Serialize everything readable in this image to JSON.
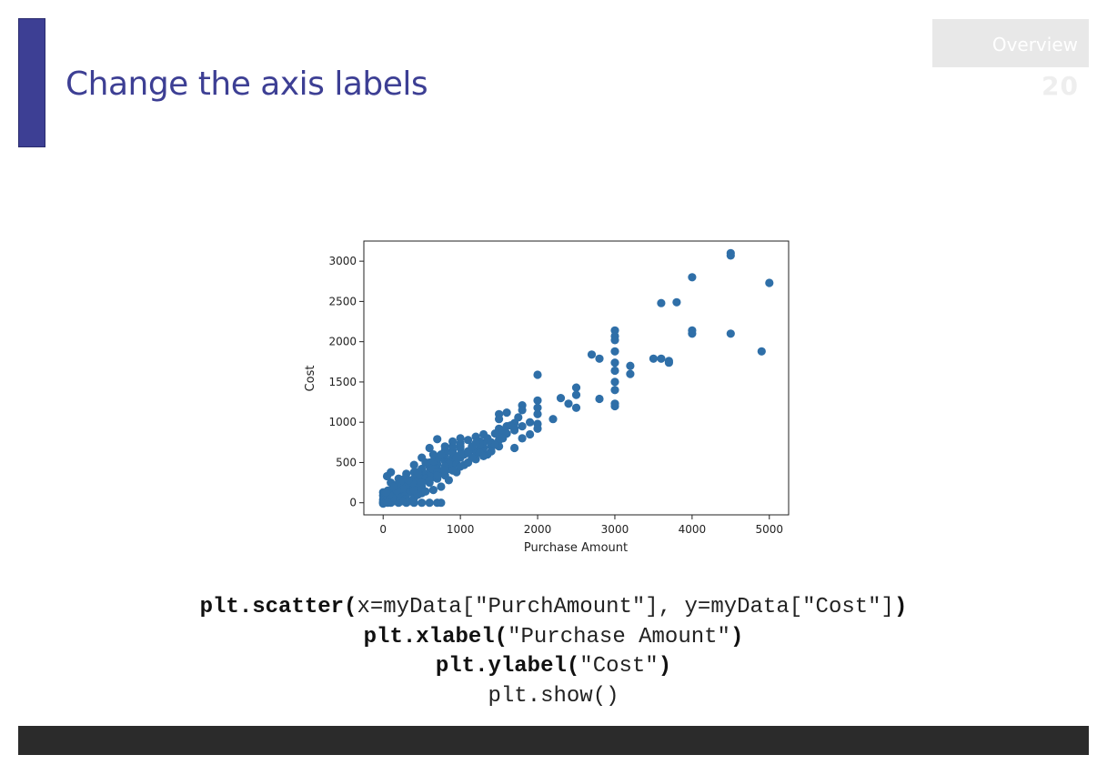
{
  "slide": {
    "title": "Change the axis labels",
    "section": "Overview",
    "page_number": "20"
  },
  "colors": {
    "accent": "#3d3f94",
    "point": "#2f6fa8",
    "footer": "#2b2b2b"
  },
  "chart_data": {
    "type": "scatter",
    "xlabel": "Purchase Amount",
    "ylabel": "Cost",
    "xlim": [
      -250,
      5250
    ],
    "ylim": [
      -150,
      3250
    ],
    "xticks": [
      0,
      1000,
      2000,
      3000,
      4000,
      5000
    ],
    "yticks": [
      0,
      500,
      1000,
      1500,
      2000,
      2500,
      3000
    ],
    "grid": false,
    "points": [
      [
        4500,
        3100
      ],
      [
        4500,
        3070
      ],
      [
        4000,
        2800
      ],
      [
        5000,
        2730
      ],
      [
        3600,
        2480
      ],
      [
        3800,
        2490
      ],
      [
        4000,
        2140
      ],
      [
        4000,
        2100
      ],
      [
        4500,
        2100
      ],
      [
        4900,
        1880
      ],
      [
        3500,
        1790
      ],
      [
        3600,
        1790
      ],
      [
        3700,
        1760
      ],
      [
        3700,
        1740
      ],
      [
        3000,
        2140
      ],
      [
        3000,
        2070
      ],
      [
        3000,
        2020
      ],
      [
        3000,
        1880
      ],
      [
        3000,
        1740
      ],
      [
        3000,
        1640
      ],
      [
        3000,
        1500
      ],
      [
        3000,
        1400
      ],
      [
        3000,
        1230
      ],
      [
        3000,
        1200
      ],
      [
        3200,
        1700
      ],
      [
        3200,
        1600
      ],
      [
        2700,
        1840
      ],
      [
        2800,
        1790
      ],
      [
        2000,
        1590
      ],
      [
        2500,
        1430
      ],
      [
        2500,
        1340
      ],
      [
        2400,
        1230
      ],
      [
        2500,
        1180
      ],
      [
        2800,
        1290
      ],
      [
        2300,
        1300
      ],
      [
        2200,
        1040
      ],
      [
        2000,
        1270
      ],
      [
        2000,
        1180
      ],
      [
        2000,
        1100
      ],
      [
        2000,
        980
      ],
      [
        2000,
        920
      ],
      [
        1800,
        1210
      ],
      [
        1800,
        1150
      ],
      [
        1750,
        1060
      ],
      [
        1700,
        990
      ],
      [
        1700,
        920
      ],
      [
        1800,
        800
      ],
      [
        1900,
        850
      ],
      [
        1600,
        1120
      ],
      [
        1500,
        1100
      ],
      [
        1500,
        1040
      ],
      [
        1600,
        950
      ],
      [
        1500,
        920
      ],
      [
        1500,
        850
      ],
      [
        1500,
        780
      ],
      [
        1400,
        700
      ],
      [
        1300,
        680
      ],
      [
        1300,
        740
      ],
      [
        1200,
        820
      ],
      [
        1200,
        640
      ],
      [
        1700,
        680
      ],
      [
        1100,
        780
      ],
      [
        1100,
        620
      ],
      [
        1000,
        740
      ],
      [
        1000,
        680
      ],
      [
        900,
        650
      ],
      [
        900,
        560
      ],
      [
        800,
        520
      ],
      [
        700,
        790
      ],
      [
        700,
        480
      ],
      [
        700,
        420
      ],
      [
        600,
        680
      ],
      [
        600,
        450
      ],
      [
        600,
        380
      ],
      [
        500,
        560
      ],
      [
        500,
        420
      ],
      [
        500,
        340
      ],
      [
        400,
        470
      ],
      [
        400,
        380
      ],
      [
        400,
        300
      ],
      [
        300,
        360
      ],
      [
        300,
        250
      ],
      [
        200,
        300
      ],
      [
        200,
        200
      ],
      [
        100,
        380
      ],
      [
        100,
        250
      ],
      [
        50,
        330
      ],
      [
        0,
        130
      ],
      [
        0,
        90
      ],
      [
        0,
        40
      ],
      [
        0,
        10
      ],
      [
        0,
        0
      ],
      [
        0,
        -10
      ],
      [
        20,
        70
      ],
      [
        20,
        40
      ],
      [
        40,
        20
      ],
      [
        60,
        150
      ],
      [
        60,
        60
      ],
      [
        80,
        20
      ],
      [
        100,
        110
      ],
      [
        100,
        50
      ],
      [
        120,
        140
      ],
      [
        150,
        60
      ],
      [
        150,
        20
      ],
      [
        150,
        180
      ],
      [
        200,
        100
      ],
      [
        200,
        40
      ],
      [
        250,
        140
      ],
      [
        250,
        60
      ],
      [
        300,
        100
      ],
      [
        350,
        200
      ],
      [
        380,
        130
      ],
      [
        400,
        220
      ],
      [
        400,
        60
      ],
      [
        450,
        240
      ],
      [
        500,
        200
      ],
      [
        500,
        120
      ],
      [
        550,
        280
      ],
      [
        600,
        250
      ],
      [
        650,
        320
      ],
      [
        700,
        300
      ],
      [
        750,
        380
      ],
      [
        800,
        340
      ],
      [
        850,
        420
      ],
      [
        900,
        460
      ],
      [
        950,
        480
      ],
      [
        1000,
        560
      ],
      [
        1050,
        600
      ],
      [
        1100,
        640
      ],
      [
        1150,
        700
      ],
      [
        1250,
        760
      ],
      [
        1350,
        800
      ],
      [
        1450,
        860
      ],
      [
        1550,
        900
      ],
      [
        1650,
        960
      ],
      [
        350,
        20
      ],
      [
        400,
        0
      ],
      [
        500,
        0
      ],
      [
        600,
        0
      ],
      [
        700,
        0
      ],
      [
        750,
        0
      ],
      [
        300,
        0
      ],
      [
        200,
        0
      ],
      [
        100,
        0
      ],
      [
        250,
        20
      ],
      [
        450,
        100
      ],
      [
        550,
        140
      ],
      [
        650,
        160
      ],
      [
        750,
        200
      ],
      [
        850,
        280
      ],
      [
        950,
        380
      ],
      [
        1050,
        470
      ],
      [
        1200,
        540
      ],
      [
        1350,
        600
      ],
      [
        1400,
        640
      ],
      [
        1500,
        700
      ],
      [
        850,
        520
      ],
      [
        750,
        560
      ],
      [
        650,
        420
      ],
      [
        560,
        360
      ],
      [
        480,
        300
      ],
      [
        420,
        270
      ],
      [
        320,
        180
      ],
      [
        280,
        140
      ],
      [
        180,
        80
      ],
      [
        130,
        90
      ],
      [
        600,
        500
      ],
      [
        650,
        520
      ],
      [
        700,
        560
      ],
      [
        800,
        600
      ],
      [
        900,
        620
      ],
      [
        1000,
        700
      ],
      [
        1250,
        720
      ],
      [
        1100,
        500
      ],
      [
        1000,
        600
      ],
      [
        950,
        560
      ],
      [
        850,
        480
      ],
      [
        800,
        450
      ],
      [
        700,
        380
      ],
      [
        600,
        330
      ],
      [
        550,
        300
      ],
      [
        450,
        180
      ],
      [
        350,
        150
      ],
      [
        300,
        220
      ],
      [
        250,
        180
      ],
      [
        180,
        150
      ],
      [
        120,
        60
      ],
      [
        80,
        100
      ],
      [
        60,
        0
      ],
      [
        40,
        130
      ],
      [
        1000,
        450
      ],
      [
        900,
        400
      ],
      [
        800,
        400
      ],
      [
        700,
        340
      ],
      [
        600,
        280
      ],
      [
        500,
        250
      ],
      [
        400,
        160
      ],
      [
        380,
        250
      ],
      [
        330,
        280
      ],
      [
        280,
        300
      ],
      [
        220,
        260
      ],
      [
        170,
        220
      ],
      [
        130,
        200
      ],
      [
        900,
        700
      ],
      [
        800,
        650
      ],
      [
        750,
        600
      ],
      [
        650,
        600
      ],
      [
        550,
        500
      ],
      [
        450,
        380
      ],
      [
        1150,
        560
      ],
      [
        1250,
        620
      ],
      [
        1300,
        580
      ],
      [
        1400,
        750
      ],
      [
        1450,
        720
      ],
      [
        1600,
        860
      ],
      [
        1700,
        900
      ],
      [
        1800,
        950
      ],
      [
        1900,
        1000
      ],
      [
        1550,
        800
      ],
      [
        1200,
        740
      ],
      [
        1300,
        850
      ],
      [
        1000,
        800
      ],
      [
        900,
        760
      ],
      [
        800,
        700
      ]
    ]
  },
  "code": {
    "line1_func": "plt.scatter(",
    "line1_args": "x=myData[\"PurchAmount\"], y=myData[\"Cost\"]",
    "line1_close": ")",
    "line2_func": "plt.xlabel(",
    "line2_args": "\"Purchase Amount\"",
    "line2_close": ")",
    "line3_func": "plt.ylabel(",
    "line3_args": "\"Cost\"",
    "line3_close": ")",
    "line4": "plt.show()"
  }
}
